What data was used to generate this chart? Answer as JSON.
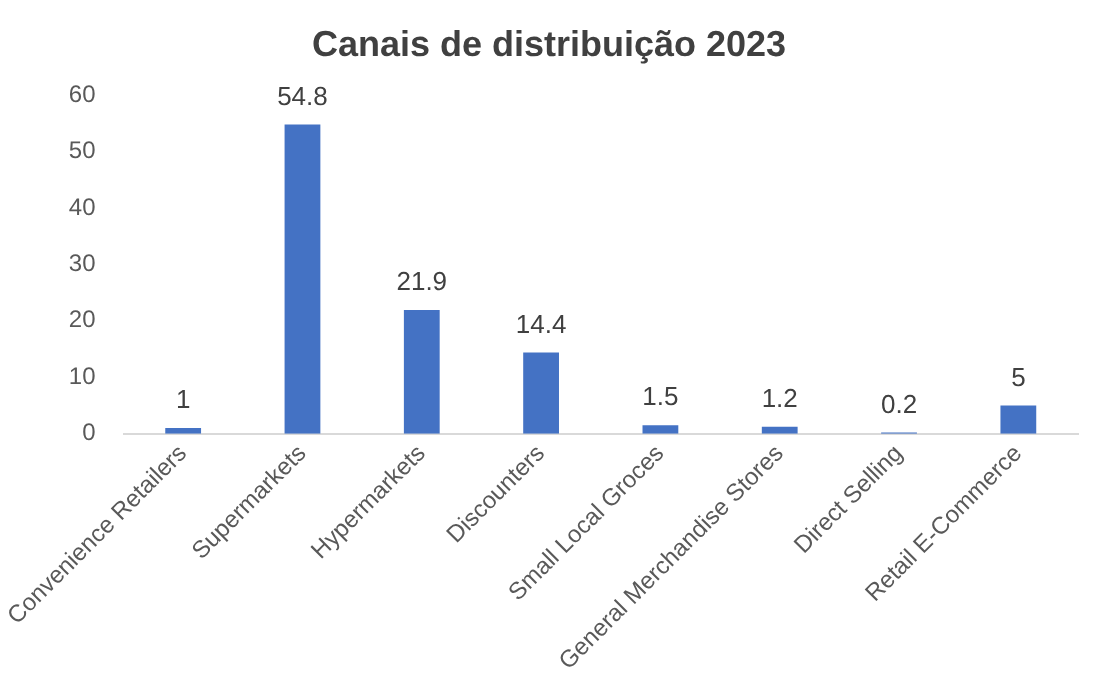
{
  "chart_data": {
    "type": "bar",
    "title": "Canais de distribuição 2023",
    "categories": [
      "Convenience Retailers",
      "Supermarkets",
      "Hypermarkets",
      "Discounters",
      "Small Local Groces",
      "General Merchandise Stores",
      "Direct Selling",
      "Retail E-Commerce"
    ],
    "values": [
      1,
      54.8,
      21.9,
      14.4,
      1.5,
      1.2,
      0.2,
      5
    ],
    "color": "#4472c4",
    "ylim": [
      0,
      60
    ],
    "yticks": [
      0,
      10,
      20,
      30,
      40,
      50,
      60
    ],
    "grid": false,
    "legend": false,
    "data_labels": true
  }
}
